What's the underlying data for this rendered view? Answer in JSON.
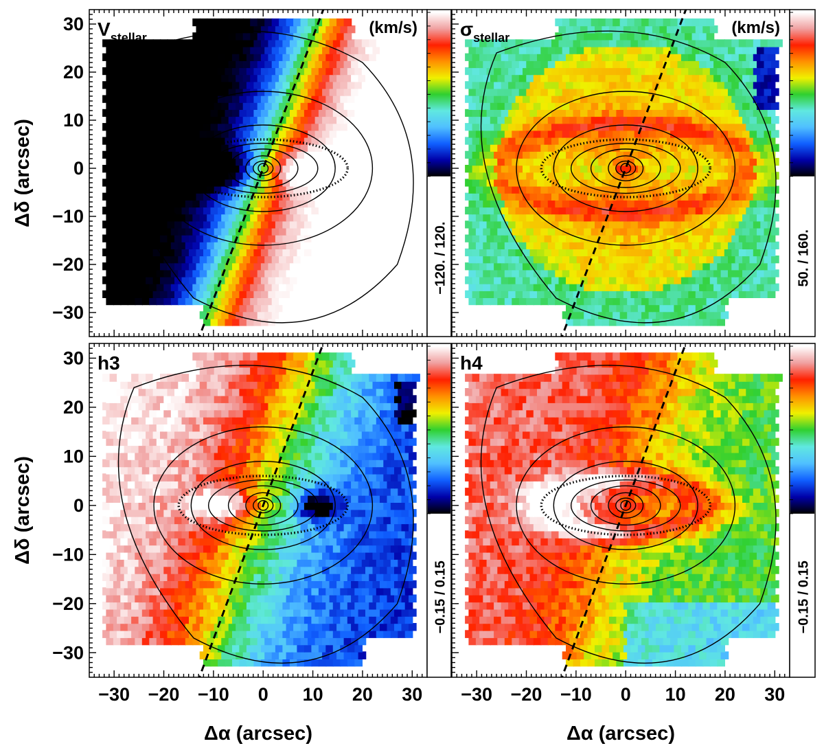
{
  "figure": {
    "x_axis_label": "Δα  (arcsec)",
    "y_axis_label": "Δδ  (arcsec)",
    "x_ticks": [
      -30,
      -20,
      -10,
      0,
      10,
      20,
      30
    ],
    "y_ticks": [
      30,
      20,
      10,
      0,
      -10,
      -20,
      -30
    ],
    "colors": {
      "colormap": [
        "#000000",
        "#0000a8",
        "#1060ff",
        "#50c0ff",
        "#60e8e0",
        "#30d030",
        "#f0f000",
        "#ff9000",
        "#ff2000",
        "#f0a0a0",
        "#ffffff"
      ]
    }
  },
  "chart_data": [
    {
      "type": "heatmap",
      "panel": "V_stellar",
      "label_main": "V",
      "label_sub": "stellar",
      "unit": "(km/s)",
      "colorbar_range_text": "−120.  /   120.",
      "colorbar_range": [
        -120,
        120
      ],
      "xlim": [
        -35,
        33
      ],
      "ylim": [
        -35,
        33
      ],
      "field": "rotation: blue (approaching) east, red (receding) west; black core at x≈-11,y≈0, white core at x≈+13,y≈0",
      "contours": "isophotes of an inclined disc/bar, dashed ellipse ring at a≈17,b≈6",
      "dashed_line": "kinematic/photometric axis through origin, position angle ≈ 20°"
    },
    {
      "type": "heatmap",
      "panel": "sigma_stellar",
      "label_main": "σ",
      "label_sub": "stellar",
      "unit": "(km/s)",
      "colorbar_range_text": "50.  /   160.",
      "colorbar_range": [
        50,
        160
      ],
      "xlim": [
        -35,
        33
      ],
      "ylim": [
        -35,
        33
      ]
    },
    {
      "type": "heatmap",
      "panel": "h3",
      "label_main": "h3",
      "label_sub": "",
      "unit": "",
      "colorbar_range_text": "−0.15  /  0.15",
      "colorbar_range": [
        -0.15,
        0.15
      ],
      "xlim": [
        -35,
        33
      ],
      "ylim": [
        -35,
        33
      ]
    },
    {
      "type": "heatmap",
      "panel": "h4",
      "label_main": "h4",
      "label_sub": "",
      "unit": "",
      "colorbar_range_text": "−0.15  /  0.15",
      "colorbar_range": [
        -0.15,
        0.15
      ],
      "xlim": [
        -35,
        33
      ],
      "ylim": [
        -35,
        33
      ]
    }
  ]
}
